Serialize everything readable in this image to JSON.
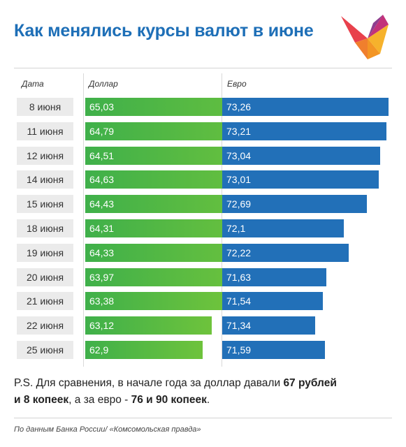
{
  "header": {
    "title": "Как менялись курсы валют в июне"
  },
  "chart_data": {
    "type": "bar",
    "columns": {
      "date": "Дата",
      "usd": "Доллар",
      "eur": "Евро"
    },
    "categories": [
      "8 июня",
      "11 июня",
      "12 июня",
      "14 июня",
      "15 июня",
      "18 июня",
      "19 июня",
      "20 июня",
      "21 июня",
      "22 июня",
      "25 июня"
    ],
    "series": [
      {
        "name": "Доллар",
        "color": "#4db848",
        "values": [
          65.03,
          64.79,
          64.51,
          64.63,
          64.43,
          64.31,
          64.33,
          63.97,
          63.38,
          63.12,
          62.9
        ],
        "labels": [
          "65,03",
          "64,79",
          "64,51",
          "64,63",
          "64,43",
          "64,31",
          "64,33",
          "63,97",
          "63,38",
          "63,12",
          "62,9"
        ]
      },
      {
        "name": "Евро",
        "color": "#2270b8",
        "values": [
          73.26,
          73.21,
          73.04,
          73.01,
          72.69,
          72.1,
          72.22,
          71.63,
          71.54,
          71.34,
          71.59
        ],
        "labels": [
          "73,26",
          "73,21",
          "73,04",
          "73,01",
          "72,69",
          "72,1",
          "72,22",
          "71,63",
          "71,54",
          "71,34",
          "71,59"
        ]
      }
    ],
    "grid": false,
    "legend": "none"
  },
  "note": {
    "prefix": "P.S. Для сравнения, в начале года за доллар давали ",
    "usd_rub": "67 рублей",
    "line2_start": "и 8 копеек",
    "middle": ", а за евро - ",
    "eur_amount": "76 и 90 копеек",
    "end": "."
  },
  "footer": {
    "source": "По данным Банка России/ «Комсомольская правда»"
  }
}
